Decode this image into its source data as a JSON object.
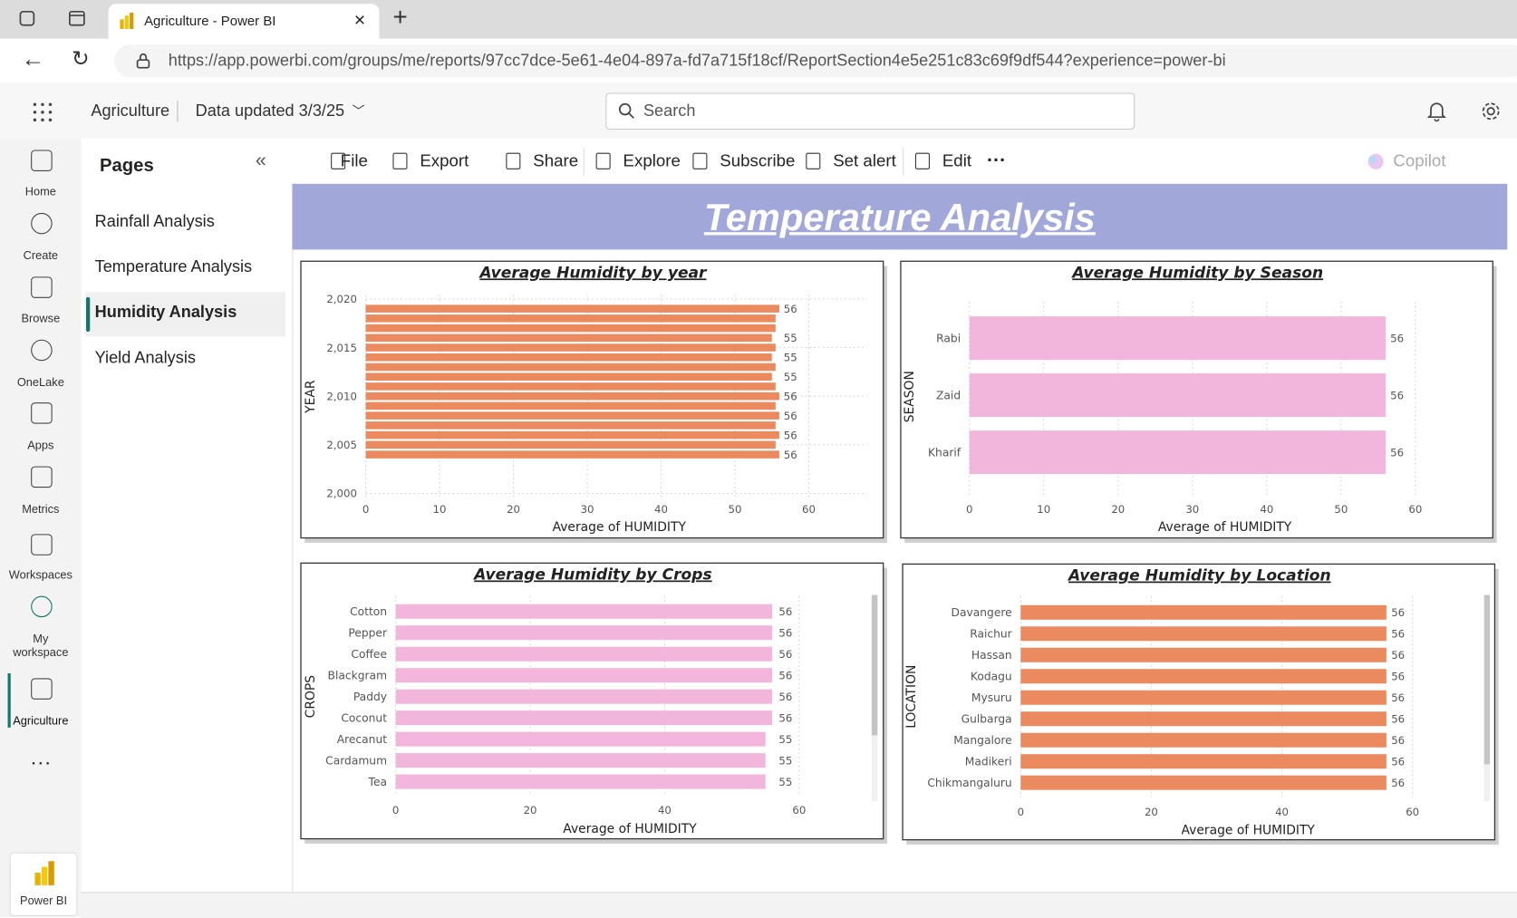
{
  "browser": {
    "tab_title": "Agriculture - Power BI",
    "url": "https://app.powerbi.com/groups/me/reports/97cc7dce-5e61-4e04-897a-fd7a715f18cf/ReportSection4e5e251c83c69f9df544?experience=power-bi"
  },
  "header": {
    "workspace": "Agriculture",
    "data_updated": "Data updated 3/3/25",
    "search": "Search"
  },
  "nav": {
    "items": [
      "Home",
      "Create",
      "Browse",
      "OneLake",
      "Apps",
      "Metrics",
      "Workspaces",
      "My workspace",
      "Agriculture"
    ],
    "footer": "Power BI"
  },
  "pages": {
    "title": "Pages",
    "items": [
      "Rainfall Analysis",
      "Temperature Analysis",
      "Humidity Analysis",
      "Yield Analysis"
    ]
  },
  "toolbar": {
    "items": [
      "File",
      "Export",
      "Share",
      "Explore",
      "Subscribe",
      "Set alert",
      "Edit"
    ],
    "copilot": "Copilot"
  },
  "report_title": "Temperature Analysis",
  "chart_data": [
    {
      "type": "hbar",
      "title": "Average Humidity by year",
      "x_label": "Average of HUMIDITY",
      "y_label": "YEAR",
      "color": "#ec8a5f",
      "y": [
        2019,
        2018,
        2017,
        2016,
        2015,
        2014,
        2013,
        2012,
        2011,
        2010,
        2009,
        2008,
        2007,
        2006,
        2005,
        2004
      ],
      "values": [
        56,
        55.5,
        55.5,
        55,
        55.5,
        55,
        55.5,
        55,
        55.5,
        56,
        55.5,
        56,
        55.5,
        56,
        55.5,
        56
      ],
      "value_labels": [
        "56",
        null,
        null,
        "55",
        null,
        "55",
        null,
        "55",
        null,
        "56",
        null,
        "56",
        null,
        "56",
        null,
        "56"
      ],
      "ylim": [
        2000,
        2020
      ],
      "yticks": [
        {
          "value": 2000,
          "label": "2,000"
        },
        {
          "value": 2005,
          "label": "2,005"
        },
        {
          "value": 2010,
          "label": "2,010"
        },
        {
          "value": 2015,
          "label": "2,015"
        },
        {
          "value": 2020,
          "label": "2,020"
        }
      ],
      "xlim": [
        0,
        60
      ],
      "xticks": [
        0,
        10,
        20,
        30,
        40,
        50,
        60
      ],
      "grid": true
    },
    {
      "type": "hbar",
      "title": "Average Humidity by Season",
      "x_label": "Average of HUMIDITY",
      "y_label": "SEASON",
      "color": "#f2b5dc",
      "categories": [
        "Rabi",
        "Zaid",
        "Kharif"
      ],
      "values": [
        56,
        56,
        56
      ],
      "xlim": [
        0,
        60
      ],
      "xticks": [
        0,
        10,
        20,
        30,
        40,
        50,
        60
      ],
      "grid": true
    },
    {
      "type": "hbar",
      "title": "Average Humidity by Crops",
      "x_label": "Average of HUMIDITY",
      "y_label": "CROPS",
      "color": "#f2b5dc",
      "categories": [
        "Cotton",
        "Pepper",
        "Coffee",
        "Blackgram",
        "Paddy",
        "Coconut",
        "Arecanut",
        "Cardamum",
        "Tea"
      ],
      "values": [
        56,
        56,
        56,
        56,
        56,
        56,
        55,
        55,
        55
      ],
      "xlim": [
        0,
        60
      ],
      "xticks": [
        0,
        20,
        40,
        60
      ],
      "grid": true
    },
    {
      "type": "hbar",
      "title": "Average Humidity by Location",
      "x_label": "Average of HUMIDITY",
      "y_label": "LOCATION",
      "color": "#ec8a5f",
      "categories": [
        "Davangere",
        "Raichur",
        "Hassan",
        "Kodagu",
        "Mysuru",
        "Gulbarga",
        "Mangalore",
        "Madikeri",
        "Chikmangaluru"
      ],
      "values": [
        56,
        56,
        56,
        56,
        56,
        56,
        56,
        56,
        56
      ],
      "xlim": [
        0,
        60
      ],
      "xticks": [
        0,
        20,
        40,
        60
      ],
      "grid": true
    }
  ]
}
